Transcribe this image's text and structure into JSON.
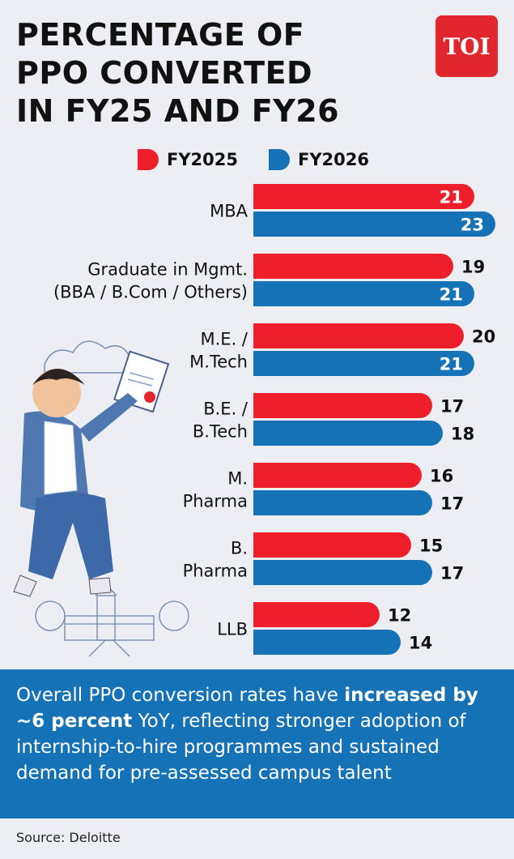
{
  "header": {
    "title_line1": "PERCENTAGE OF",
    "title_line2": "PPO CONVERTED",
    "title_line3": "IN FY25 AND FY26",
    "logo_text": "TOI"
  },
  "colors": {
    "fy2025": "#ee1f2a",
    "fy2026": "#1572b6",
    "background": "#edeef3",
    "note_bg": "#1572b6"
  },
  "chart_data": {
    "type": "bar",
    "orientation": "horizontal",
    "title": "PERCENTAGE OF PPO CONVERTED IN FY25 AND FY26",
    "categories": [
      [
        "MBA"
      ],
      [
        "Graduate in Mgmt.",
        "(BBA / B.Com / Others)"
      ],
      [
        "M.E. /",
        "M.Tech"
      ],
      [
        "B.E. /",
        "B.Tech"
      ],
      [
        "M.",
        "Pharma"
      ],
      [
        "B.",
        "Pharma"
      ],
      [
        "LLB"
      ]
    ],
    "series": [
      {
        "name": "FY2025",
        "color": "#ee1f2a",
        "values": [
          21,
          19,
          20,
          17,
          16,
          15,
          12
        ]
      },
      {
        "name": "FY2026",
        "color": "#1572b6",
        "values": [
          23,
          21,
          21,
          18,
          17,
          17,
          14
        ]
      }
    ],
    "label_inside": [
      [
        true,
        false,
        false,
        false,
        false,
        false,
        false
      ],
      [
        true,
        true,
        true,
        false,
        false,
        false,
        false
      ]
    ],
    "legend_position": "top",
    "grid": false
  },
  "note": {
    "text_before": "Overall PPO conversion rates have ",
    "text_bold": "increased by ~6 percent",
    "text_after": " YoY, reflecting stronger adoption of internship-to-hire programmes and sustained demand for pre-assessed campus talent"
  },
  "source": "Source: Deloitte"
}
